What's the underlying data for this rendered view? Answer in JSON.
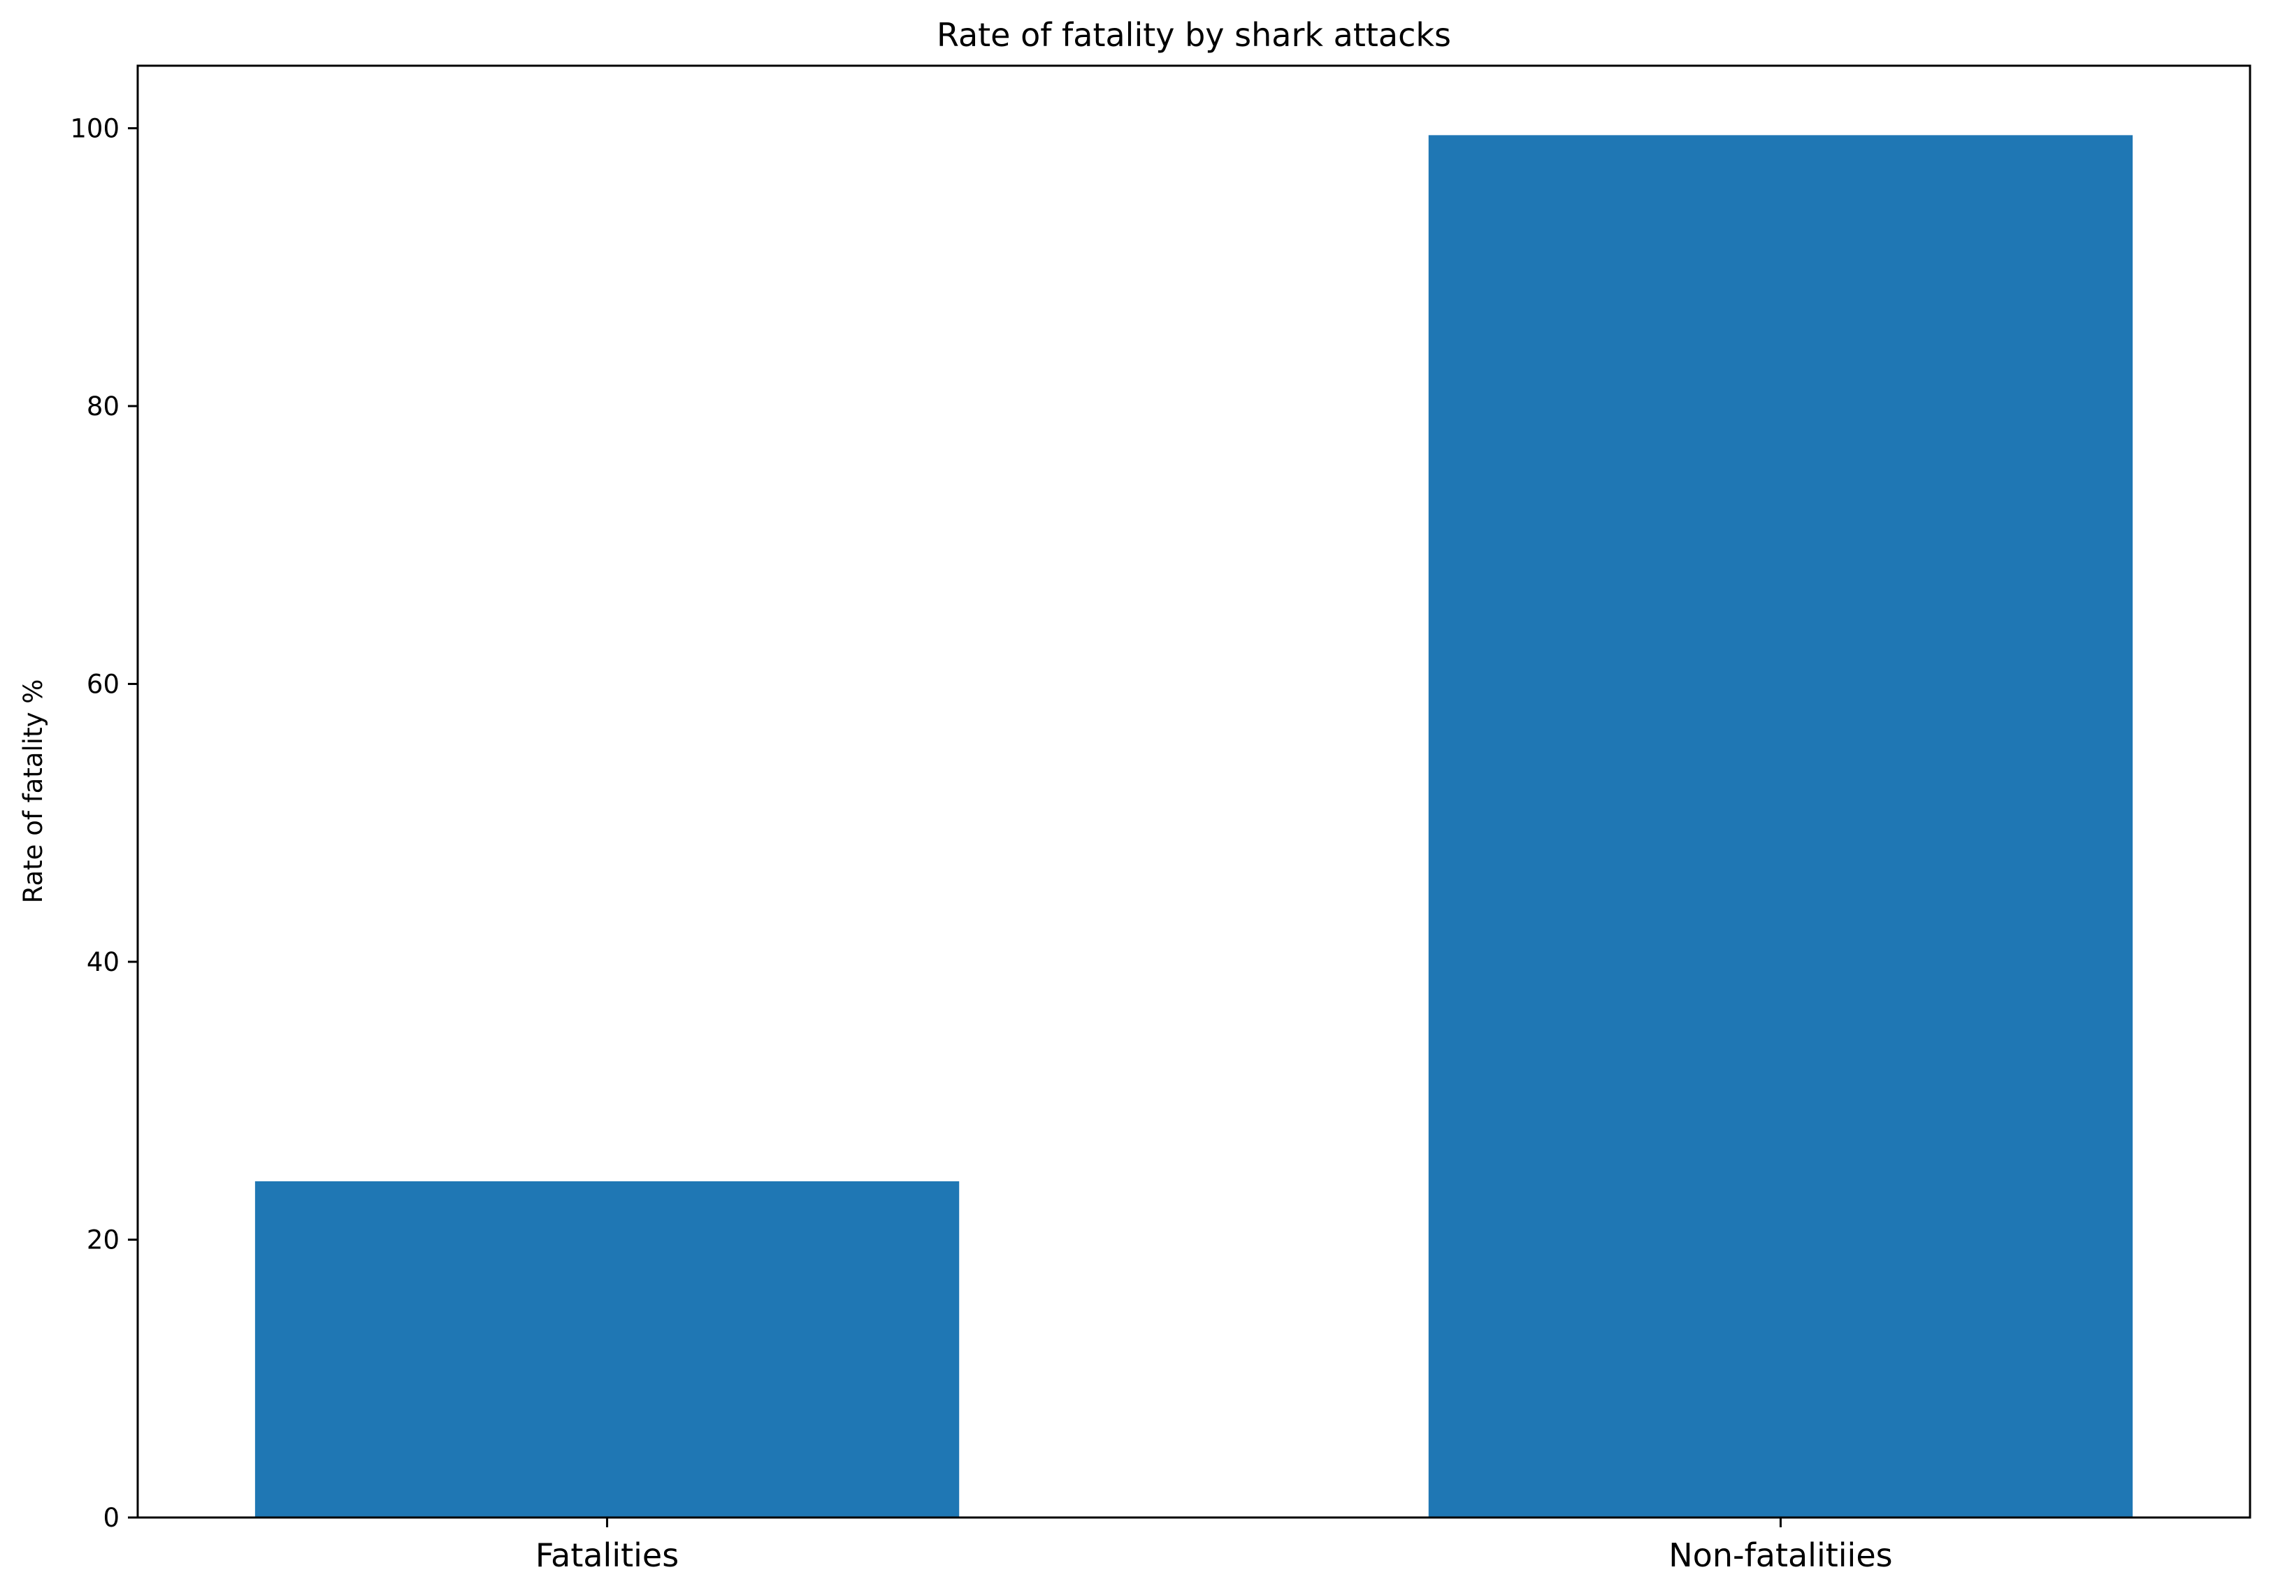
{
  "chart_data": {
    "type": "bar",
    "title": "Rate of fatality by shark attacks",
    "xlabel": "",
    "ylabel": "Rate of fatality %",
    "categories": [
      "Fatalities",
      "Non-fatalitiies"
    ],
    "values": [
      24.2,
      99.5
    ],
    "ylim": [
      0,
      104.5
    ],
    "yticks": [
      0,
      20,
      40,
      60,
      80,
      100
    ],
    "ytick_labels": [
      "0",
      "20",
      "40",
      "60",
      "80",
      "100"
    ],
    "bar_color": "#1f77b4",
    "grid": false,
    "legend": "none"
  }
}
